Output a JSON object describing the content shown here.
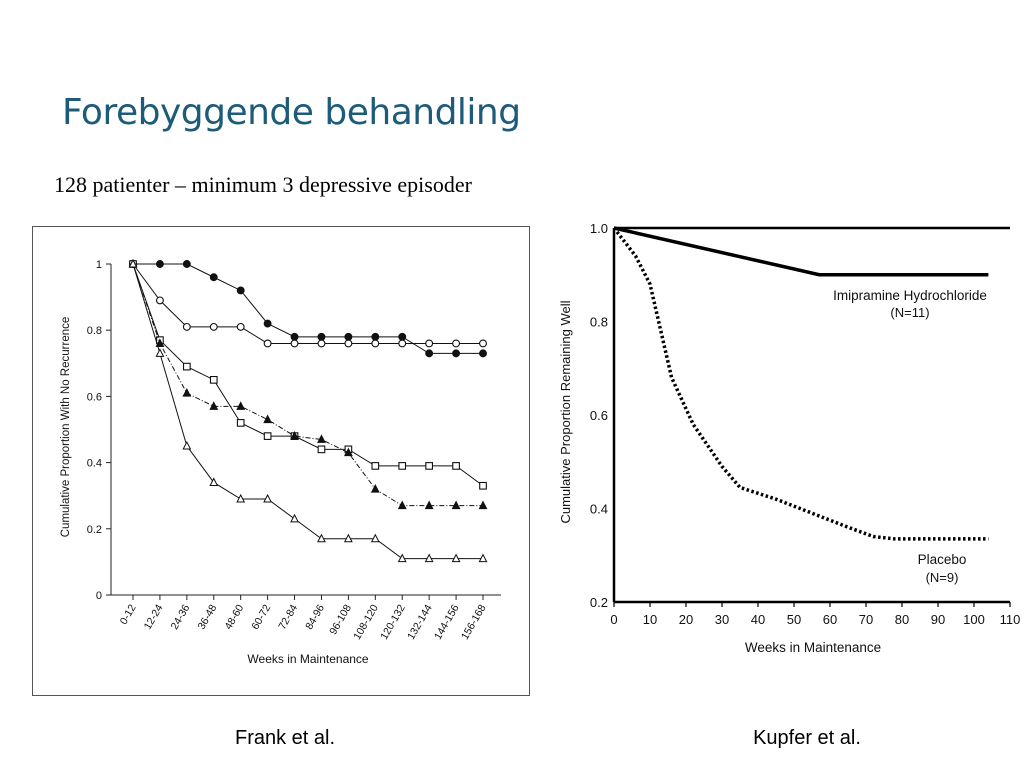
{
  "slide": {
    "title": "Forebyggende behandling",
    "subtitle": "128 patienter – minimum 3 depressive episoder",
    "captions": {
      "left": "Frank et al.",
      "right": "Kupfer et al."
    }
  },
  "chart_data": [
    {
      "type": "line",
      "title": "",
      "xlabel": "Weeks in Maintenance",
      "ylabel": "Cumulative Proportion With No Recurrence",
      "categories": [
        "0-12",
        "12-24",
        "24-36",
        "36-48",
        "48-60",
        "60-72",
        "72-84",
        "84-96",
        "96-108",
        "108-120",
        "120-132",
        "132-144",
        "144-156",
        "156-168"
      ],
      "ylim": [
        0,
        1
      ],
      "yticks": [
        0,
        0.2,
        0.4,
        0.6,
        0.8,
        1
      ],
      "ytick_labels": [
        "0",
        "0.2",
        "0.4",
        "0.6",
        "0.8",
        "1"
      ],
      "grid": false,
      "series": [
        {
          "marker": "filled-circle",
          "line": "solid",
          "color": "#111111",
          "values": [
            1,
            1,
            1,
            0.96,
            0.92,
            0.82,
            0.78,
            0.78,
            0.78,
            0.78,
            0.78,
            0.73,
            0.73,
            0.73
          ]
        },
        {
          "marker": "open-circle",
          "line": "solid",
          "color": "#111111",
          "values": [
            1,
            0.89,
            0.81,
            0.81,
            0.81,
            0.76,
            0.76,
            0.76,
            0.76,
            0.76,
            0.76,
            0.76,
            0.76,
            0.76
          ]
        },
        {
          "marker": "open-square",
          "line": "solid",
          "color": "#111111",
          "values": [
            1,
            0.77,
            0.69,
            0.65,
            0.52,
            0.48,
            0.48,
            0.44,
            0.44,
            0.39,
            0.39,
            0.39,
            0.39,
            0.33
          ]
        },
        {
          "marker": "filled-triangle",
          "line": "dashdot",
          "color": "#111111",
          "values": [
            1,
            0.76,
            0.61,
            0.57,
            0.57,
            0.53,
            0.48,
            0.47,
            0.43,
            0.32,
            0.27,
            0.27,
            0.27,
            0.27
          ]
        },
        {
          "marker": "open-triangle",
          "line": "solid",
          "color": "#111111",
          "values": [
            1,
            0.73,
            0.45,
            0.34,
            0.29,
            0.29,
            0.23,
            0.17,
            0.17,
            0.17,
            0.11,
            0.11,
            0.11,
            0.11
          ]
        }
      ]
    },
    {
      "type": "line",
      "title": "",
      "xlabel": "Weeks in Maintenance",
      "ylabel": "Cumulative Proportion Remaining Well",
      "xlim": [
        0,
        110
      ],
      "ylim": [
        0.2,
        1.0
      ],
      "xticks": [
        0,
        10,
        20,
        30,
        40,
        50,
        60,
        70,
        80,
        90,
        100,
        110
      ],
      "xtick_labels": [
        "0",
        "10",
        "20",
        "30",
        "40",
        "50",
        "60",
        "70",
        "80",
        "90",
        "100",
        "110"
      ],
      "yticks": [
        0.2,
        0.4,
        0.6,
        0.8,
        1.0
      ],
      "ytick_labels": [
        "0.2",
        "0.4",
        "0.6",
        "0.8",
        "1.0"
      ],
      "grid": false,
      "series": [
        {
          "line": "solid-thick",
          "color": "#000000",
          "x": [
            0,
            57,
            104
          ],
          "y": [
            1.0,
            0.9,
            0.9
          ],
          "annotation": [
            "Imipramine Hydrochloride",
            "(N=11)"
          ]
        },
        {
          "line": "dotted",
          "color": "#000000",
          "x": [
            0,
            3,
            6,
            10,
            13,
            16,
            22,
            30,
            35,
            45,
            55,
            65,
            72,
            78,
            88,
            100,
            104
          ],
          "y": [
            1.0,
            0.97,
            0.94,
            0.88,
            0.78,
            0.68,
            0.58,
            0.49,
            0.445,
            0.42,
            0.39,
            0.36,
            0.34,
            0.335,
            0.335,
            0.335,
            0.335
          ],
          "annotation": [
            "Placebo",
            "(N=9)"
          ]
        }
      ]
    }
  ]
}
